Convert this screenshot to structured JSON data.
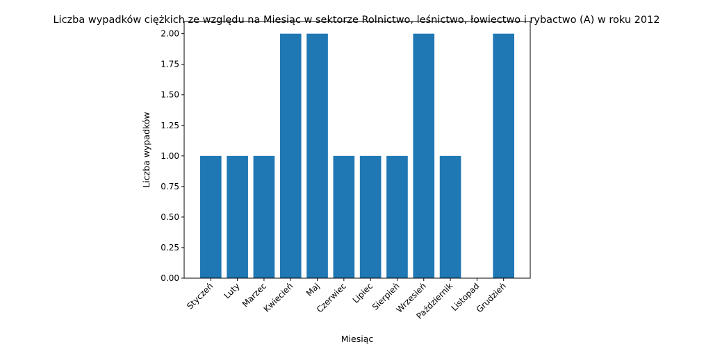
{
  "chart_data": {
    "type": "bar",
    "title": "Liczba wypadków ciężkich ze względu na Miesiąc w sektorze Rolnictwo, leśnictwo, łowiectwo i rybactwo (A) w roku 2012",
    "xlabel": "Miesiąc",
    "ylabel": "Liczba wypadków",
    "categories": [
      "Styczeń",
      "Luty",
      "Marzec",
      "Kwiecień",
      "Maj",
      "Czerwiec",
      "Lipiec",
      "Sierpień",
      "Wrzesień",
      "Październik",
      "Listopad",
      "Grudzień"
    ],
    "values": [
      1,
      1,
      1,
      2,
      2,
      1,
      1,
      1,
      2,
      1,
      0,
      2
    ],
    "ylim": [
      0,
      2.1
    ],
    "yticks": [
      "0.00",
      "0.25",
      "0.50",
      "0.75",
      "1.00",
      "1.25",
      "1.50",
      "1.75",
      "2.00"
    ],
    "bar_color": "#1f77b4",
    "grid": false,
    "legend": "none"
  }
}
